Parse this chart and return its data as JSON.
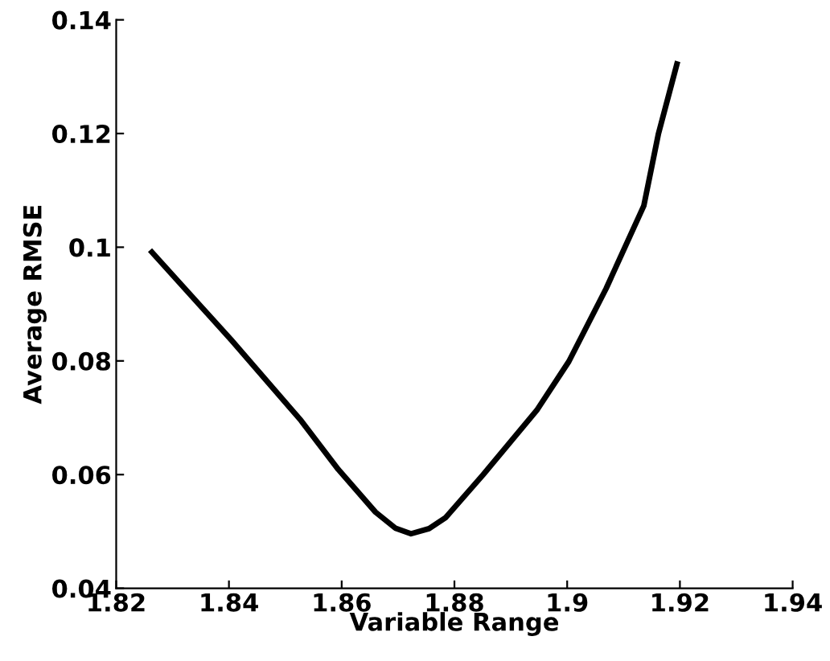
{
  "chart_data": {
    "type": "line",
    "xlabel": "Variable Range",
    "ylabel": "Average RMSE",
    "x": [
      1.826,
      1.8404,
      1.8528,
      1.8594,
      1.866,
      1.8695,
      1.8723,
      1.8755,
      1.8784,
      1.8851,
      1.8946,
      1.9003,
      1.9069,
      1.9136,
      1.9162,
      1.9196
    ],
    "series": [
      {
        "color": "#000000",
        "values": [
          0.0995,
          0.0837,
          0.0695,
          0.0609,
          0.0534,
          0.0506,
          0.0496,
          0.0505,
          0.0524,
          0.06,
          0.0713,
          0.0799,
          0.0927,
          0.1073,
          0.12,
          0.1327
        ]
      }
    ],
    "xlim": [
      1.82,
      1.94
    ],
    "xticks": [
      1.82,
      1.84,
      1.86,
      1.88,
      1.9,
      1.92,
      1.94
    ],
    "ylim": [
      0.04,
      0.14
    ],
    "yticks": [
      0.04,
      0.06,
      0.08,
      0.1,
      0.12,
      0.14
    ],
    "grid": false,
    "legend": false,
    "marker": "none",
    "line_style": "solid"
  }
}
